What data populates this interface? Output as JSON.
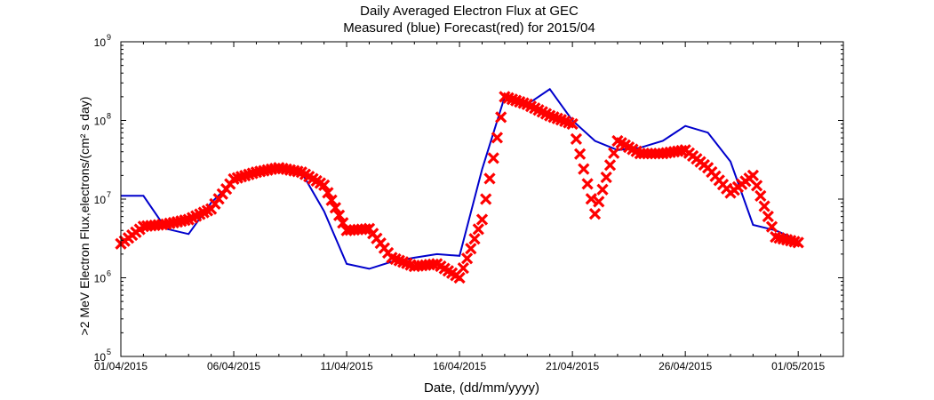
{
  "chart_data": {
    "type": "line",
    "title": "Daily Averaged Electron Flux at GEC",
    "subtitle": "Measured (blue) Forecast(red) for 2015/04",
    "xlabel": "Date, (dd/mm/yyyy)",
    "ylabel": ">2 MeV Electron Flux,electrons/(cm² s day)",
    "yscale": "log",
    "ylim": [
      100000,
      1000000000
    ],
    "xlim": [
      "2015-04-01",
      "2015-05-03"
    ],
    "x_ticks": [
      "01/04/2015",
      "06/04/2015",
      "11/04/2015",
      "16/04/2015",
      "21/04/2015",
      "26/04/2015",
      "01/05/2015"
    ],
    "y_ticks": [
      {
        "base": "10",
        "exp": "5"
      },
      {
        "base": "10",
        "exp": "6"
      },
      {
        "base": "10",
        "exp": "7"
      },
      {
        "base": "10",
        "exp": "8"
      },
      {
        "base": "10",
        "exp": "9"
      }
    ],
    "grid": false,
    "series": [
      {
        "color": "#0000cc",
        "style": "line",
        "x": [
          "2015-04-01",
          "2015-04-02",
          "2015-04-03",
          "2015-04-04",
          "2015-04-05",
          "2015-04-06",
          "2015-04-07",
          "2015-04-08",
          "2015-04-09",
          "2015-04-10",
          "2015-04-11",
          "2015-04-12",
          "2015-04-13",
          "2015-04-14",
          "2015-04-15",
          "2015-04-16",
          "2015-04-17",
          "2015-04-18",
          "2015-04-19",
          "2015-04-20",
          "2015-04-21",
          "2015-04-22",
          "2015-04-23",
          "2015-04-24",
          "2015-04-25",
          "2015-04-26",
          "2015-04-27",
          "2015-04-28",
          "2015-04-29",
          "2015-04-30",
          "2015-05-01"
        ],
        "y": [
          11000000,
          11000000,
          4200000,
          3600000,
          9000000,
          17000000,
          22000000,
          24000000,
          22000000,
          7000000,
          1500000,
          1300000,
          1600000,
          1800000,
          2000000,
          1900000,
          24000000,
          200000000,
          160000000,
          250000000,
          100000000,
          55000000,
          42000000,
          45000000,
          55000000,
          85000000,
          70000000,
          30000000,
          4700000,
          4000000,
          3000000
        ]
      },
      {
        "color": "#ff0000",
        "style": "marker-x",
        "x": [
          "2015-04-01",
          "2015-04-02",
          "2015-04-03",
          "2015-04-04",
          "2015-04-05",
          "2015-04-06",
          "2015-04-07",
          "2015-04-08",
          "2015-04-09",
          "2015-04-10",
          "2015-04-11",
          "2015-04-12",
          "2015-04-13",
          "2015-04-14",
          "2015-04-15",
          "2015-04-16",
          "2015-04-17",
          "2015-04-18",
          "2015-04-19",
          "2015-04-20",
          "2015-04-21",
          "2015-04-22",
          "2015-04-23",
          "2015-04-24",
          "2015-04-25",
          "2015-04-26",
          "2015-04-27",
          "2015-04-28",
          "2015-04-29",
          "2015-04-30",
          "2015-05-01"
        ],
        "y": [
          2700000,
          4500000,
          4800000,
          5500000,
          7500000,
          18000000,
          22000000,
          25000000,
          22000000,
          15000000,
          4000000,
          4200000,
          1800000,
          1400000,
          1500000,
          1000000,
          5500000,
          200000000,
          160000000,
          115000000,
          90000000,
          6500000,
          55000000,
          38000000,
          38000000,
          42000000,
          25000000,
          12000000,
          20000000,
          3300000,
          2800000
        ]
      }
    ]
  }
}
